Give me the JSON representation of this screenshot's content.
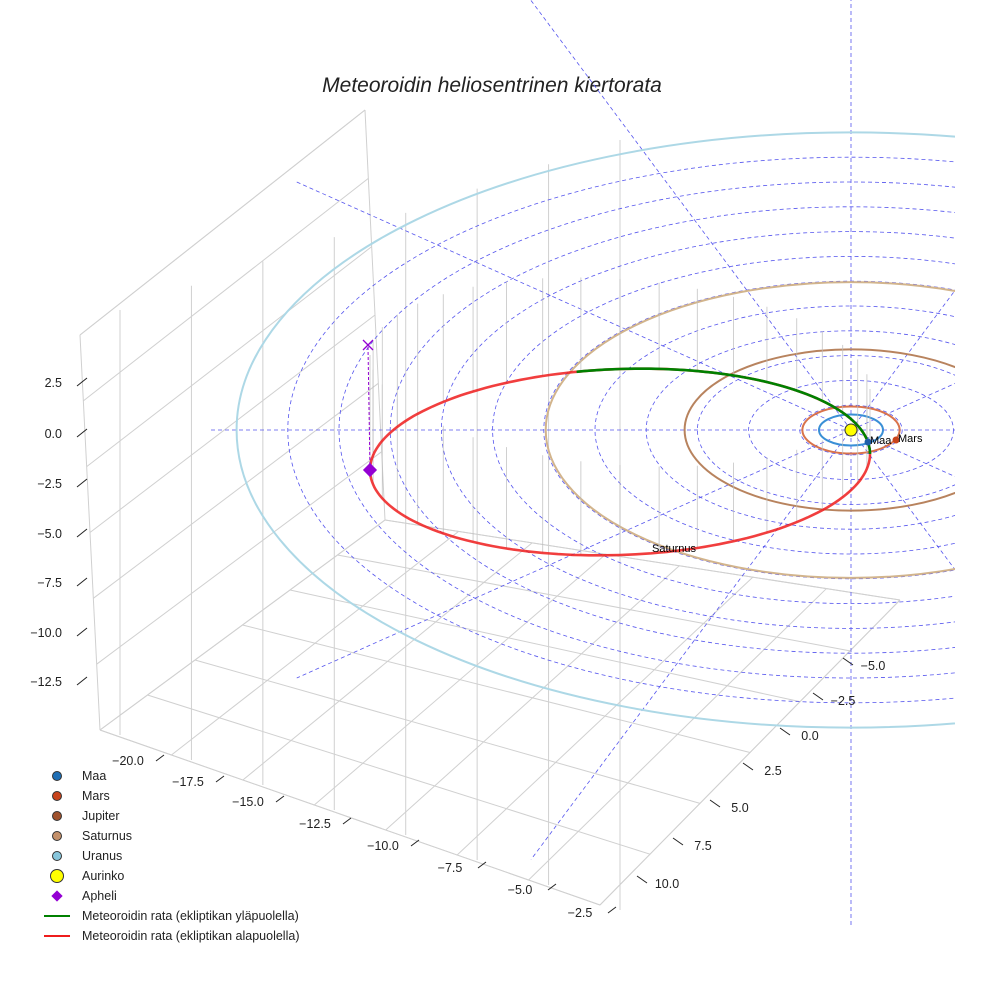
{
  "chart_data": {
    "type": "3d-orbit",
    "title": "Meteoroidin heliosentrinen kiertorata",
    "x_ticks": [
      "−20.0",
      "−17.5",
      "−15.0",
      "−12.5",
      "−10.0",
      "−7.5",
      "−5.0",
      "−2.5"
    ],
    "y_ticks": [
      "−5.0",
      "−2.5",
      "0.0",
      "2.5",
      "5.0",
      "7.5",
      "10.0"
    ],
    "z_ticks": [
      "2.5",
      "0.0",
      "−2.5",
      "−5.0",
      "−7.5",
      "−10.0",
      "−12.5"
    ],
    "planets": [
      {
        "name": "Maa",
        "orbit_au": 1.0,
        "color": "#3a8fd6",
        "marker": "#1f5fa8",
        "label": "Maa"
      },
      {
        "name": "Mars",
        "orbit_au": 1.52,
        "color": "#d9734c",
        "marker": "#c8441c",
        "label": "Mars"
      },
      {
        "name": "Jupiter",
        "orbit_au": 5.2,
        "color": "#b8835e",
        "marker": "#a0522d",
        "label": ""
      },
      {
        "name": "Saturnus",
        "orbit_au": 9.54,
        "color": "#d2b48c",
        "marker": "#c4906a",
        "label": "Saturnus"
      },
      {
        "name": "Uranus",
        "orbit_au": 19.2,
        "color": "#add8e6",
        "marker": "#87c6dc",
        "label": ""
      }
    ],
    "sun": {
      "name": "Aurinko",
      "color": "#ffff00"
    },
    "aphelion": {
      "name": "Apheli",
      "color": "#9400d3"
    },
    "meteoroid": {
      "perihelion_au": 1.0,
      "aphelion_au": 16.5,
      "above_color": "#008000",
      "below_color": "#ee1c1c"
    },
    "legend": {
      "placement": "lower-left",
      "items": [
        {
          "label": "Maa",
          "color": "#1f6fb5",
          "type": "dot"
        },
        {
          "label": "Mars",
          "color": "#c8441c",
          "type": "dot"
        },
        {
          "label": "Jupiter",
          "color": "#a0522d",
          "type": "dot"
        },
        {
          "label": "Saturnus",
          "color": "#c4906a",
          "type": "dot"
        },
        {
          "label": "Uranus",
          "color": "#87c6dc",
          "type": "dot"
        },
        {
          "label": "Aurinko",
          "color": "#ffff00",
          "type": "sun"
        },
        {
          "label": "Apheli",
          "color": "#9400d3",
          "type": "diamond"
        },
        {
          "label": "Meteoroidin rata (ekliptikan yläpuolella)",
          "color": "#008000",
          "type": "line"
        },
        {
          "label": "Meteoroidin rata (ekliptikan alapuolella)",
          "color": "#ee1c1c",
          "type": "line"
        }
      ]
    }
  }
}
